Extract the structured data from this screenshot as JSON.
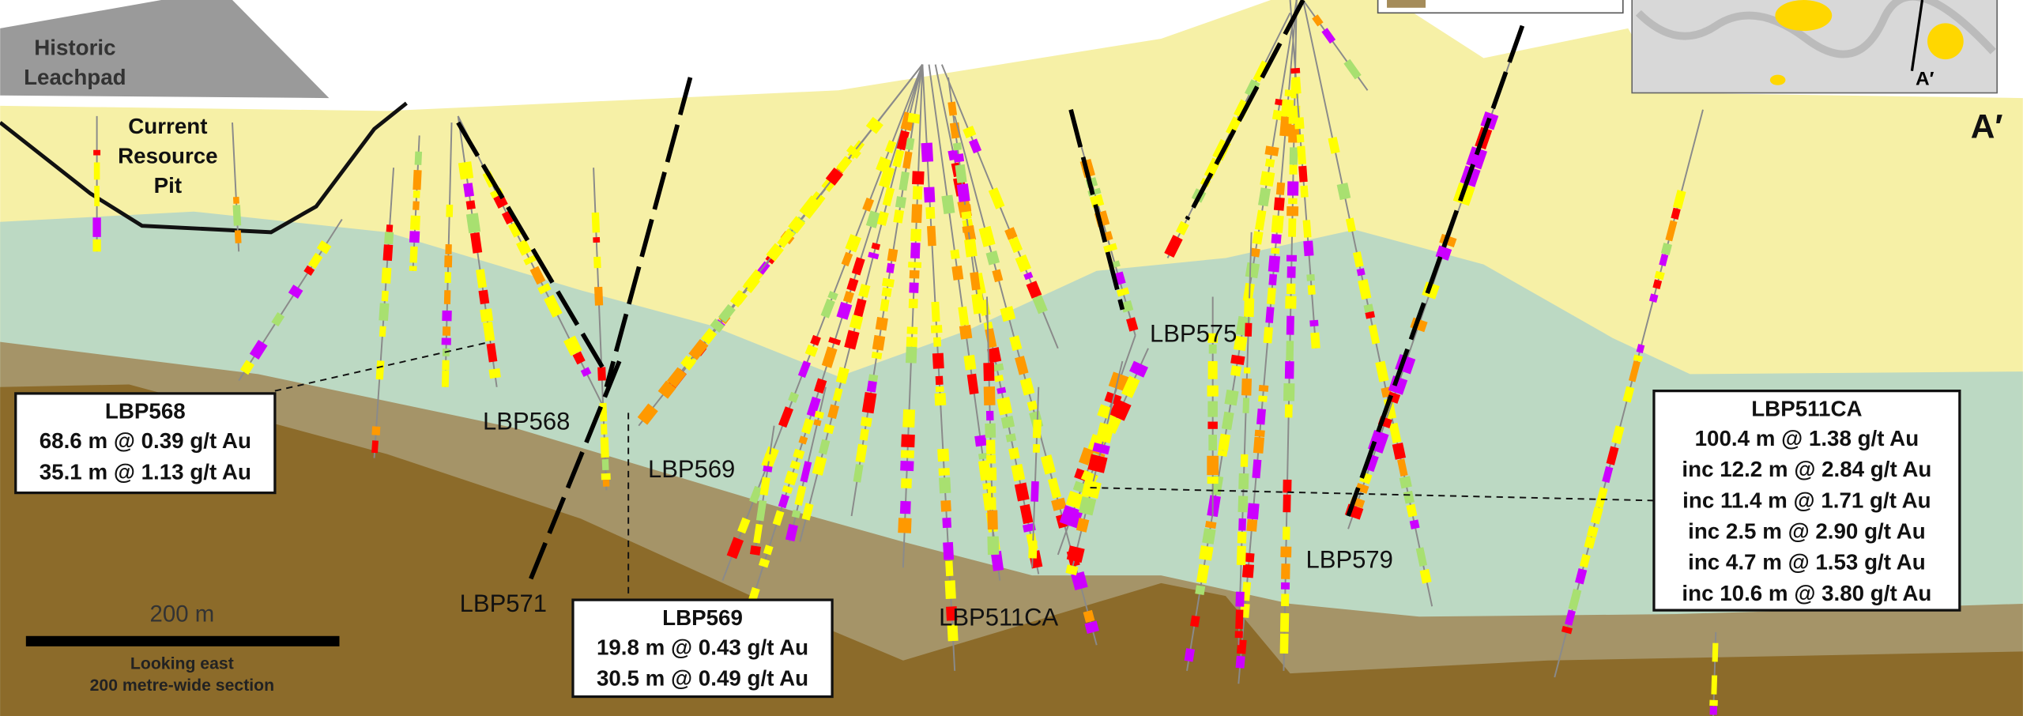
{
  "labels": {
    "historic_leachpad": [
      "Historic",
      "Leachpad"
    ],
    "current_resource_pit": [
      "Current",
      "Resource",
      "Pit"
    ],
    "section_end": "A′",
    "inset_end": "A′"
  },
  "hole_labels": [
    "LBP568",
    "LBP569",
    "LBP571",
    "LBP575",
    "LBP579",
    "LBP511CA"
  ],
  "intercept_boxes": [
    {
      "hole": "LBP568",
      "lines": [
        "68.6 m @ 0.39 g/t Au",
        "35.1 m @ 1.13 g/t Au"
      ]
    },
    {
      "hole": "LBP569",
      "lines": [
        "19.8 m @ 0.43 g/t Au",
        "30.5 m @ 0.49 g/t Au"
      ]
    },
    {
      "hole": "LBP511CA",
      "lines": [
        "100.4 m @ 1.38 g/t Au",
        "inc 12.2 m @ 2.84 g/t Au",
        "inc 11.4 m @ 1.71 g/t Au",
        "inc 2.5 m @ 2.90 g/t Au",
        "inc 4.7 m @ 1.53 g/t Au",
        "inc 10.6 m @ 3.80 g/t Au"
      ]
    }
  ],
  "scale_bar": {
    "length": "200 m",
    "notes": [
      "Looking east",
      "200 metre-wide section"
    ]
  }
}
